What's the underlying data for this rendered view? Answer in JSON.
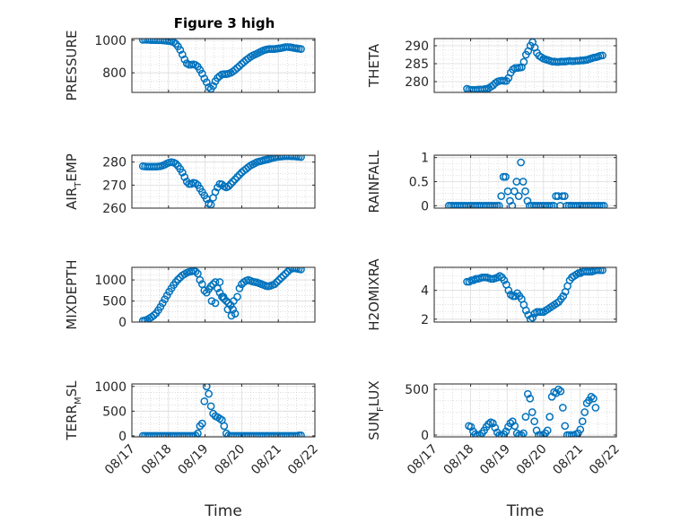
{
  "figure": {
    "title": "Figure 3 high"
  },
  "chart_data": [
    {
      "type": "scatter",
      "panel": "pressure",
      "ylabel": "PRESSURE",
      "ylim": [
        680,
        1010
      ],
      "yticks": [
        800,
        1000
      ],
      "xlim": [
        0,
        5
      ],
      "xticks": [
        0,
        1,
        2,
        3,
        4,
        5
      ],
      "series_color": "#0072BD",
      "x": [
        0.3,
        0.36,
        0.42,
        0.48,
        0.54,
        0.6,
        0.66,
        0.72,
        0.78,
        0.84,
        0.9,
        0.96,
        1.02,
        1.08,
        1.14,
        1.2,
        1.26,
        1.32,
        1.38,
        1.44,
        1.5,
        1.56,
        1.62,
        1.68,
        1.74,
        1.8,
        1.86,
        1.92,
        1.98,
        2.04,
        2.1,
        2.16,
        2.22,
        2.28,
        2.34,
        2.4,
        2.46,
        2.52,
        2.58,
        2.64,
        2.7,
        2.76,
        2.82,
        2.88,
        2.94,
        3.0,
        3.06,
        3.12,
        3.18,
        3.24,
        3.3,
        3.36,
        3.42,
        3.48,
        3.54,
        3.6,
        3.66,
        3.72,
        3.78,
        3.84,
        3.9,
        3.96,
        4.02,
        4.08,
        4.14,
        4.2,
        4.26,
        4.32,
        4.38,
        4.44,
        4.5,
        4.56,
        4.62
      ],
      "y": [
        1002,
        1003,
        1002,
        1002,
        1001,
        1001,
        1000,
        1000,
        1000,
        999,
        998,
        996,
        995,
        992,
        988,
        978,
        962,
        940,
        912,
        882,
        858,
        850,
        850,
        852,
        848,
        838,
        818,
        795,
        765,
        742,
        712,
        702,
        720,
        748,
        768,
        780,
        790,
        792,
        792,
        795,
        800,
        808,
        818,
        830,
        842,
        855,
        866,
        878,
        888,
        898,
        906,
        912,
        918,
        925,
        932,
        938,
        942,
        945,
        946,
        946,
        946,
        948,
        950,
        952,
        955,
        958,
        958,
        957,
        955,
        952,
        950,
        948,
        946
      ]
    },
    {
      "type": "scatter",
      "panel": "theta",
      "ylabel": "THETA",
      "ylim": [
        277,
        292
      ],
      "yticks": [
        280,
        285,
        290
      ],
      "xlim": [
        0,
        5
      ],
      "xticks": [
        0,
        1,
        2,
        3,
        4,
        5
      ],
      "series_color": "#0072BD",
      "x": [
        0.9,
        0.96,
        1.02,
        1.08,
        1.14,
        1.2,
        1.26,
        1.32,
        1.38,
        1.44,
        1.5,
        1.56,
        1.62,
        1.68,
        1.74,
        1.8,
        1.86,
        1.92,
        1.98,
        2.04,
        2.1,
        2.16,
        2.22,
        2.28,
        2.34,
        2.4,
        2.46,
        2.52,
        2.58,
        2.64,
        2.7,
        2.76,
        2.82,
        2.88,
        2.94,
        3.0,
        3.06,
        3.12,
        3.18,
        3.24,
        3.3,
        3.36,
        3.42,
        3.48,
        3.54,
        3.6,
        3.66,
        3.72,
        3.78,
        3.84,
        3.9,
        3.96,
        4.02,
        4.08,
        4.14,
        4.2,
        4.26,
        4.32,
        4.38,
        4.44,
        4.5,
        4.56,
        4.62
      ],
      "y": [
        278,
        277.8,
        277.7,
        277.7,
        277.7,
        277.8,
        277.8,
        277.8,
        277.9,
        278,
        278.2,
        278.6,
        279,
        279.6,
        280,
        280.2,
        280.3,
        280.2,
        280.2,
        281,
        282.5,
        283.4,
        283.8,
        283.8,
        283.9,
        284,
        285.5,
        287.5,
        288.5,
        290,
        291,
        289.5,
        288,
        287.2,
        286.8,
        286.4,
        286.2,
        286,
        285.8,
        285.6,
        285.6,
        285.5,
        285.5,
        285.6,
        285.6,
        285.6,
        285.7,
        285.8,
        285.7,
        285.7,
        285.8,
        285.8,
        285.9,
        285.9,
        286,
        286.1,
        286.3,
        286.5,
        286.7,
        286.8,
        287,
        287.2,
        287.3
      ]
    },
    {
      "type": "scatter",
      "panel": "air_temp",
      "ylabel": "AIR",
      "ylabel_sub": "T",
      "ylabel_rest": "EMP",
      "ylim": [
        260,
        283
      ],
      "yticks": [
        260,
        270,
        280
      ],
      "xlim": [
        0,
        5
      ],
      "xticks": [
        0,
        1,
        2,
        3,
        4,
        5
      ],
      "series_color": "#0072BD",
      "x": [
        0.3,
        0.36,
        0.42,
        0.48,
        0.54,
        0.6,
        0.66,
        0.72,
        0.78,
        0.84,
        0.9,
        0.96,
        1.02,
        1.08,
        1.14,
        1.2,
        1.26,
        1.32,
        1.38,
        1.44,
        1.5,
        1.56,
        1.62,
        1.68,
        1.74,
        1.8,
        1.86,
        1.92,
        1.98,
        2.04,
        2.1,
        2.16,
        2.22,
        2.28,
        2.34,
        2.4,
        2.46,
        2.52,
        2.58,
        2.64,
        2.7,
        2.76,
        2.82,
        2.88,
        2.94,
        3.0,
        3.06,
        3.12,
        3.18,
        3.24,
        3.3,
        3.36,
        3.42,
        3.48,
        3.54,
        3.6,
        3.66,
        3.72,
        3.78,
        3.84,
        3.9,
        3.96,
        4.02,
        4.08,
        4.14,
        4.2,
        4.26,
        4.32,
        4.38,
        4.44,
        4.5,
        4.56,
        4.62
      ],
      "y": [
        278.2,
        278.1,
        278.0,
        278.0,
        278.0,
        278.0,
        278.0,
        278.1,
        278.2,
        278.5,
        278.9,
        279.4,
        279.8,
        280.0,
        279.8,
        279.3,
        278.3,
        277.0,
        275.5,
        273.5,
        271.5,
        270.5,
        270.5,
        271.0,
        270.8,
        270.0,
        268.5,
        267.0,
        265.5,
        264.0,
        262.0,
        261.5,
        264.5,
        267.0,
        269.0,
        270.5,
        270.3,
        269.5,
        269.0,
        269.5,
        270.5,
        271.5,
        272.5,
        273.5,
        274.5,
        275.5,
        276.3,
        277.0,
        277.8,
        278.5,
        279.0,
        279.5,
        280.0,
        280.3,
        280.5,
        280.8,
        281.0,
        281.2,
        281.5,
        281.8,
        282.0,
        282.2,
        282.3,
        282.4,
        282.5,
        282.6,
        282.6,
        282.6,
        282.5,
        282.5,
        282.4,
        282.3,
        282.2
      ]
    },
    {
      "type": "scatter",
      "panel": "rainfall",
      "ylabel": "RAINFALL",
      "ylim": [
        -0.05,
        1.05
      ],
      "yticks": [
        0,
        0.5,
        1
      ],
      "xlim": [
        0,
        5
      ],
      "xticks": [
        0,
        1,
        2,
        3,
        4,
        5
      ],
      "series_color": "#0072BD",
      "x": [
        0.4,
        0.46,
        0.52,
        0.58,
        0.64,
        0.7,
        0.76,
        0.82,
        0.88,
        0.94,
        1.0,
        1.06,
        1.12,
        1.18,
        1.24,
        1.3,
        1.36,
        1.42,
        1.48,
        1.54,
        1.6,
        1.66,
        1.72,
        1.78,
        1.84,
        1.9,
        1.96,
        2.02,
        2.08,
        2.14,
        2.2,
        2.26,
        2.32,
        2.38,
        2.44,
        2.5,
        2.56,
        2.62,
        2.68,
        2.74,
        2.8,
        2.86,
        2.92,
        2.98,
        3.04,
        3.1,
        3.16,
        3.22,
        3.28,
        3.34,
        3.4,
        3.46,
        3.52,
        3.58,
        3.64,
        3.7,
        3.76,
        3.82,
        3.88,
        3.94,
        4.0,
        4.06,
        4.12,
        4.18,
        4.24,
        4.3,
        4.36,
        4.42,
        4.48,
        4.54,
        4.6,
        4.66
      ],
      "y": [
        0,
        0,
        0,
        0,
        0,
        0,
        0,
        0,
        0,
        0,
        0,
        0,
        0,
        0,
        0,
        0,
        0,
        0,
        0,
        0,
        0,
        0,
        0,
        0,
        0.2,
        0.6,
        0.6,
        0.3,
        0.1,
        0,
        0.3,
        0.5,
        0.2,
        0.9,
        0.5,
        0.3,
        0.1,
        0,
        0,
        0,
        0,
        0,
        0,
        0,
        0,
        0,
        0,
        0,
        0,
        0.2,
        0.2,
        0,
        0.2,
        0.2,
        0,
        0,
        0,
        0,
        0,
        0,
        0,
        0,
        0,
        0,
        0,
        0,
        0,
        0,
        0,
        0,
        0,
        0
      ]
    },
    {
      "type": "scatter",
      "panel": "mixdepth",
      "ylabel": "MIXDEPTH",
      "ylim": [
        0,
        1300
      ],
      "yticks": [
        0,
        500,
        1000
      ],
      "xlim": [
        0,
        5
      ],
      "xticks": [
        0,
        1,
        2,
        3,
        4,
        5
      ],
      "series_color": "#0072BD",
      "x": [
        0.3,
        0.36,
        0.42,
        0.48,
        0.54,
        0.6,
        0.66,
        0.72,
        0.78,
        0.84,
        0.9,
        0.96,
        1.02,
        1.08,
        1.14,
        1.2,
        1.26,
        1.32,
        1.38,
        1.44,
        1.5,
        1.56,
        1.62,
        1.68,
        1.74,
        1.8,
        1.86,
        1.92,
        1.98,
        2.04,
        2.1,
        2.16,
        2.22,
        2.28,
        2.34,
        2.4,
        2.46,
        2.52,
        2.58,
        2.64,
        2.7,
        2.76,
        2.82,
        2.88,
        2.94,
        3.0,
        3.06,
        3.12,
        3.18,
        3.24,
        3.3,
        3.36,
        3.42,
        3.48,
        3.54,
        3.6,
        3.66,
        3.72,
        3.78,
        3.84,
        3.9,
        3.96,
        4.02,
        4.08,
        4.14,
        4.2,
        4.26,
        4.32,
        4.38,
        4.44,
        4.5,
        4.56,
        4.62,
        2.18,
        2.28,
        2.4,
        2.5,
        2.62,
        2.72,
        2.78
      ],
      "y": [
        30,
        40,
        60,
        90,
        120,
        160,
        210,
        280,
        360,
        450,
        540,
        630,
        720,
        800,
        880,
        950,
        1010,
        1060,
        1110,
        1140,
        1170,
        1190,
        1200,
        1220,
        1200,
        1150,
        1000,
        900,
        750,
        700,
        780,
        850,
        900,
        950,
        800,
        700,
        600,
        550,
        500,
        450,
        400,
        300,
        200,
        600,
        800,
        900,
        950,
        980,
        1000,
        980,
        960,
        950,
        940,
        920,
        900,
        880,
        860,
        850,
        860,
        880,
        900,
        950,
        1000,
        1050,
        1100,
        1150,
        1200,
        1250,
        1270,
        1280,
        1270,
        1260,
        1250,
        500,
        450,
        950,
        600,
        300,
        150,
        500
      ]
    },
    {
      "type": "scatter",
      "panel": "h2omixra",
      "ylabel": "H2OMIXRA",
      "ylim": [
        1.8,
        5.6
      ],
      "yticks": [
        2,
        4
      ],
      "xlim": [
        0,
        5
      ],
      "xticks": [
        0,
        1,
        2,
        3,
        4,
        5
      ],
      "series_color": "#0072BD",
      "x": [
        0.9,
        0.96,
        1.02,
        1.08,
        1.14,
        1.2,
        1.26,
        1.32,
        1.38,
        1.44,
        1.5,
        1.56,
        1.62,
        1.68,
        1.74,
        1.8,
        1.86,
        1.92,
        1.98,
        2.04,
        2.1,
        2.16,
        2.22,
        2.28,
        2.34,
        2.4,
        2.46,
        2.52,
        2.58,
        2.64,
        2.7,
        2.76,
        2.82,
        2.88,
        2.94,
        3.0,
        3.06,
        3.12,
        3.18,
        3.24,
        3.3,
        3.36,
        3.42,
        3.48,
        3.54,
        3.6,
        3.66,
        3.72,
        3.78,
        3.84,
        3.9,
        3.96,
        4.02,
        4.08,
        4.14,
        4.2,
        4.26,
        4.32,
        4.38,
        4.44,
        4.5,
        4.56,
        4.62
      ],
      "y": [
        4.6,
        4.6,
        4.7,
        4.7,
        4.8,
        4.8,
        4.85,
        4.9,
        4.9,
        4.9,
        4.85,
        4.8,
        4.8,
        4.85,
        4.9,
        5.0,
        4.9,
        4.7,
        4.4,
        4.0,
        3.7,
        3.6,
        3.6,
        3.8,
        3.6,
        3.4,
        3.0,
        2.6,
        2.3,
        2.0,
        2.1,
        2.4,
        2.5,
        2.5,
        2.5,
        2.5,
        2.6,
        2.7,
        2.8,
        2.9,
        3.0,
        3.1,
        3.2,
        3.4,
        3.6,
        3.9,
        4.3,
        4.7,
        4.9,
        5.0,
        5.1,
        5.2,
        5.2,
        5.3,
        5.3,
        5.3,
        5.3,
        5.3,
        5.35,
        5.4,
        5.4,
        5.4,
        5.4
      ]
    },
    {
      "type": "scatter",
      "panel": "terr_msl",
      "ylabel": "TERR",
      "ylabel_sub": "M",
      "ylabel_rest": "SL",
      "ylim": [
        -20,
        1050
      ],
      "yticks": [
        0,
        500,
        1000
      ],
      "xlim": [
        0,
        5
      ],
      "xticks": [
        0,
        1,
        2,
        3,
        4,
        5
      ],
      "xticklabels": [
        "08/17",
        "08/18",
        "08/19",
        "08/20",
        "08/21",
        "08/22"
      ],
      "xlabel": "Time",
      "series_color": "#0072BD",
      "x": [
        0.3,
        0.36,
        0.42,
        0.48,
        0.54,
        0.6,
        0.66,
        0.72,
        0.78,
        0.84,
        0.9,
        0.96,
        1.02,
        1.08,
        1.14,
        1.2,
        1.26,
        1.32,
        1.38,
        1.44,
        1.5,
        1.56,
        1.62,
        1.68,
        1.74,
        1.8,
        1.86,
        1.92,
        1.98,
        2.04,
        2.1,
        2.16,
        2.22,
        2.28,
        2.34,
        2.4,
        2.46,
        2.52,
        2.58,
        2.64,
        2.7,
        2.76,
        2.82,
        2.88,
        2.94,
        3.0,
        3.06,
        3.12,
        3.18,
        3.24,
        3.3,
        3.36,
        3.42,
        3.48,
        3.54,
        3.6,
        3.66,
        3.72,
        3.78,
        3.84,
        3.9,
        3.96,
        4.02,
        4.08,
        4.14,
        4.2,
        4.26,
        4.32,
        4.38,
        4.44,
        4.5,
        4.56,
        4.62
      ],
      "y": [
        0,
        0,
        0,
        0,
        0,
        0,
        0,
        0,
        0,
        0,
        0,
        0,
        0,
        0,
        0,
        0,
        0,
        0,
        0,
        0,
        0,
        0,
        0,
        0,
        10,
        50,
        200,
        250,
        700,
        1000,
        850,
        600,
        450,
        400,
        380,
        350,
        320,
        200,
        50,
        10,
        0,
        0,
        0,
        0,
        0,
        0,
        0,
        0,
        0,
        0,
        0,
        0,
        0,
        0,
        0,
        0,
        0,
        0,
        0,
        0,
        0,
        0,
        0,
        0,
        0,
        0,
        0,
        0,
        0,
        0,
        0,
        10,
        10
      ]
    },
    {
      "type": "scatter",
      "panel": "sun_flux",
      "ylabel": "SUN",
      "ylabel_sub": "F",
      "ylabel_rest": "LUX",
      "ylim": [
        -20,
        560
      ],
      "yticks": [
        0,
        500
      ],
      "xlim": [
        0,
        5
      ],
      "xticks": [
        0,
        1,
        2,
        3,
        4,
        5
      ],
      "xticklabels": [
        "08/17",
        "08/18",
        "08/19",
        "08/20",
        "08/21",
        "08/22"
      ],
      "xlabel": "Time",
      "series_color": "#0072BD",
      "x": [
        0.95,
        1.01,
        1.07,
        1.13,
        1.19,
        1.25,
        1.31,
        1.37,
        1.43,
        1.49,
        1.55,
        1.61,
        1.67,
        1.73,
        1.79,
        1.85,
        1.91,
        1.97,
        2.03,
        2.09,
        2.15,
        2.21,
        2.27,
        2.33,
        2.39,
        2.45,
        2.51,
        2.57,
        2.63,
        2.69,
        2.75,
        2.81,
        2.87,
        2.93,
        2.99,
        3.05,
        3.11,
        3.17,
        3.23,
        3.29,
        3.35,
        3.41,
        3.47,
        3.53,
        3.59,
        3.65,
        3.71,
        3.77,
        3.83,
        3.89,
        3.95,
        4.01,
        4.07,
        4.13,
        4.19,
        4.25,
        4.31,
        4.37,
        4.43
      ],
      "y": [
        100,
        90,
        40,
        10,
        0,
        0,
        20,
        50,
        90,
        120,
        140,
        130,
        80,
        30,
        0,
        0,
        10,
        40,
        90,
        130,
        150,
        100,
        20,
        0,
        0,
        20,
        200,
        450,
        400,
        250,
        150,
        50,
        0,
        0,
        0,
        20,
        50,
        200,
        420,
        470,
        460,
        500,
        480,
        300,
        100,
        0,
        0,
        0,
        0,
        10,
        20,
        60,
        150,
        250,
        350,
        380,
        420,
        400,
        300
      ]
    }
  ]
}
